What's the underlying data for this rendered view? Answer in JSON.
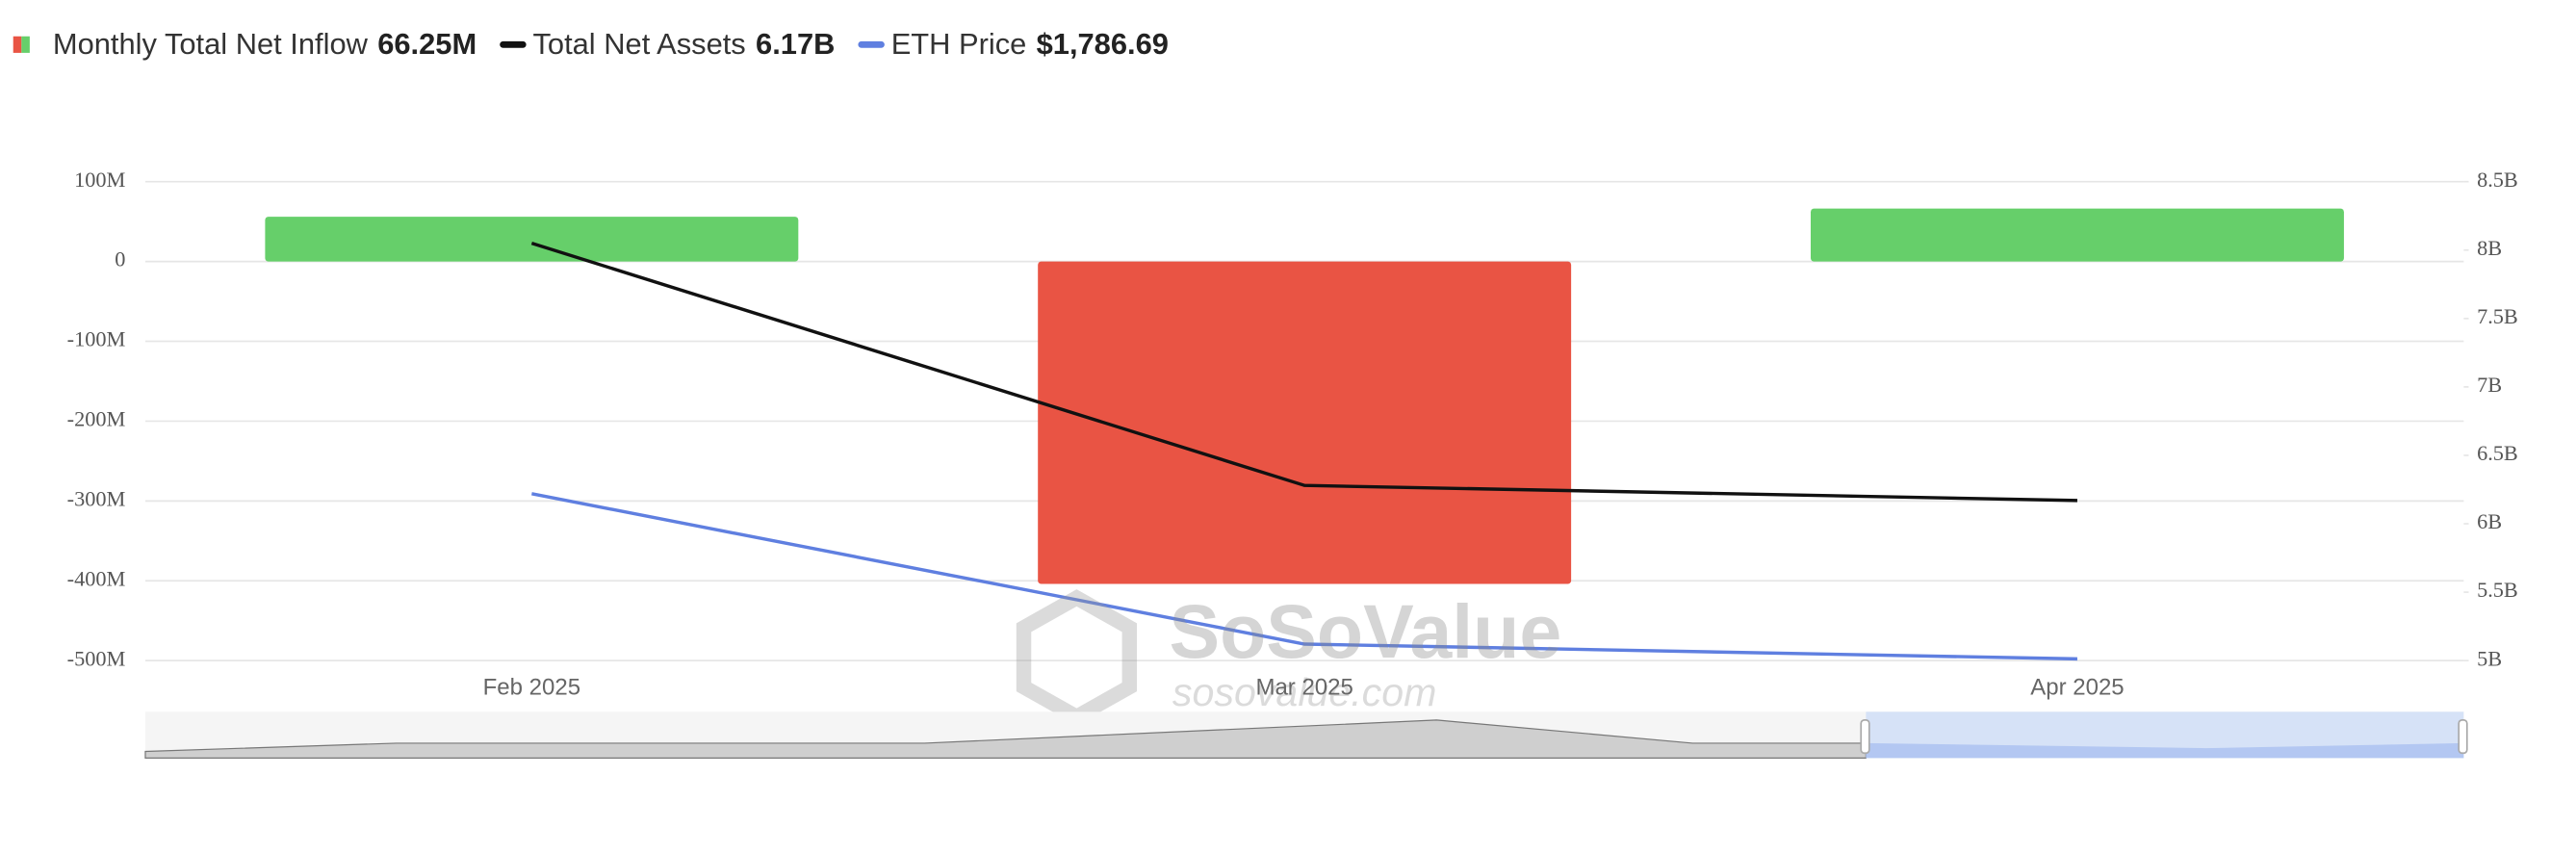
{
  "chart_data": {
    "type": "bar-line",
    "legend": [
      {
        "name": "Monthly Total Net Inflow",
        "value_label": "66.25M"
      },
      {
        "name": "Total Net Assets",
        "value_label": "6.17B"
      },
      {
        "name": "ETH Price",
        "value_label": "$1,786.69"
      }
    ],
    "categories": [
      "Feb 2025",
      "Mar 2025",
      "Apr 2025"
    ],
    "series": [
      {
        "name": "Monthly Total Net Inflow",
        "kind": "bar",
        "color": "#66cf6a",
        "negative_color": "#e95444",
        "values": [
          56,
          -404,
          66.25
        ]
      },
      {
        "name": "Total Net Assets",
        "kind": "line",
        "axis": "y2",
        "color": "#111111",
        "values": [
          8.05,
          6.28,
          6.17
        ]
      },
      {
        "name": "ETH Price",
        "kind": "line",
        "axis": "y3",
        "color": "#5f7fe0",
        "values": [
          2237,
          1827,
          1786.69
        ]
      }
    ],
    "ylim": [
      -500,
      100
    ],
    "yticks": [
      {
        "value": 100,
        "label": "100M"
      },
      0,
      {
        "value": -100,
        "label": "-100M"
      },
      {
        "value": -200,
        "label": "-200M"
      },
      {
        "value": -300,
        "label": "-300M"
      },
      {
        "value": -400,
        "label": "-400M"
      },
      {
        "value": -500,
        "label": "-500M"
      }
    ],
    "y2lim": [
      5,
      8.5
    ],
    "y2ticks": [
      {
        "value": 8.5,
        "label": "8.5B"
      },
      {
        "value": 8,
        "label": "8B"
      },
      {
        "value": 7.5,
        "label": "7.5B"
      },
      {
        "value": 7,
        "label": "7B"
      },
      {
        "value": 6.5,
        "label": "6.5B"
      },
      {
        "value": 6,
        "label": "6B"
      },
      {
        "value": 5.5,
        "label": "5.5B"
      },
      {
        "value": 5,
        "label": "5B"
      }
    ],
    "y3lim": [
      1782,
      3088
    ],
    "grid": true,
    "watermark": [
      "SoSoValue",
      "sosovalue.com"
    ]
  }
}
